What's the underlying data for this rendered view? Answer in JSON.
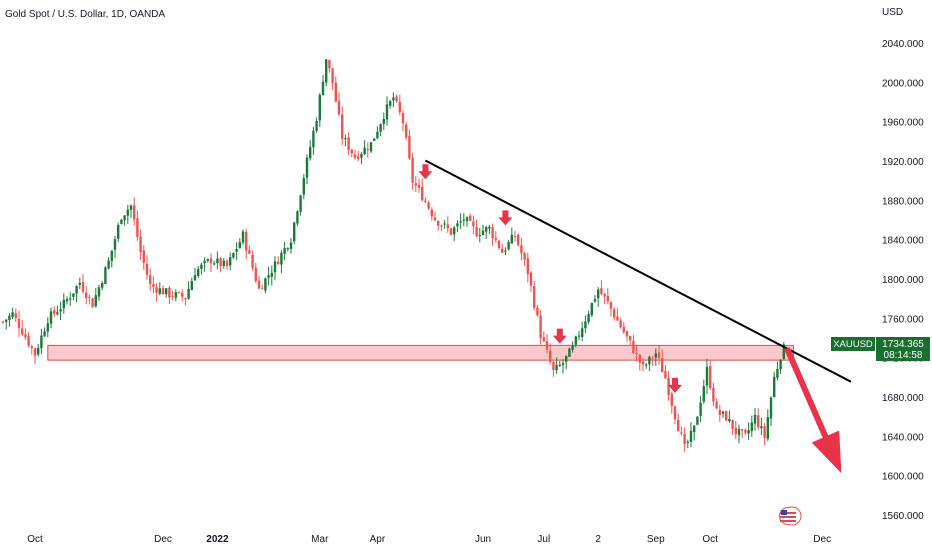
{
  "chart_data": {
    "type": "candlestick",
    "title": "Gold Spot / U.S. Dollar, 1D, OANDA",
    "currency": "USD",
    "y_range": [
      1545,
      2100
    ],
    "y_ticks": [
      {
        "value": 2040,
        "label": "2040.000"
      },
      {
        "value": 2000,
        "label": "2000.000"
      },
      {
        "value": 1960,
        "label": "1960.000"
      },
      {
        "value": 1920,
        "label": "1920.000"
      },
      {
        "value": 1880,
        "label": "1880.000"
      },
      {
        "value": 1840,
        "label": "1840.000"
      },
      {
        "value": 1800,
        "label": "1800.000"
      },
      {
        "value": 1760,
        "label": "1760.000"
      },
      {
        "value": 1720,
        "label": "1720.000"
      },
      {
        "value": 1680,
        "label": "1680.000"
      },
      {
        "value": 1640,
        "label": "1640.000"
      },
      {
        "value": 1600,
        "label": "1600.000"
      },
      {
        "value": 1560,
        "label": "1560.000"
      }
    ],
    "x_ticks": [
      {
        "label": "Oct",
        "bar": 10,
        "bold": false
      },
      {
        "label": "Dec",
        "bar": 50,
        "bold": false
      },
      {
        "label": "2022",
        "bar": 67,
        "bold": true
      },
      {
        "label": "Mar",
        "bar": 99,
        "bold": false
      },
      {
        "label": "Apr",
        "bar": 117,
        "bold": false
      },
      {
        "label": "Jun",
        "bar": 150,
        "bold": false
      },
      {
        "label": "Jul",
        "bar": 169,
        "bold": false
      },
      {
        "label": "2",
        "bar": 186,
        "bold": false
      },
      {
        "label": "Sep",
        "bar": 204,
        "bold": false
      },
      {
        "label": "Oct",
        "bar": 221,
        "bold": false
      },
      {
        "label": "Dec",
        "bar": 256,
        "bold": false
      }
    ],
    "price_path": [
      [
        0,
        1757
      ],
      [
        3,
        1765
      ],
      [
        6,
        1748
      ],
      [
        10,
        1724
      ],
      [
        14,
        1760
      ],
      [
        19,
        1775
      ],
      [
        24,
        1797
      ],
      [
        28,
        1775
      ],
      [
        33,
        1818
      ],
      [
        37,
        1865
      ],
      [
        40,
        1875
      ],
      [
        43,
        1828
      ],
      [
        46,
        1794
      ],
      [
        52,
        1785
      ],
      [
        57,
        1782
      ],
      [
        60,
        1808
      ],
      [
        65,
        1820
      ],
      [
        70,
        1813
      ],
      [
        75,
        1845
      ],
      [
        80,
        1790
      ],
      [
        85,
        1815
      ],
      [
        90,
        1842
      ],
      [
        94,
        1905
      ],
      [
        98,
        1965
      ],
      [
        101,
        2025
      ],
      [
        103,
        2000
      ],
      [
        106,
        1945
      ],
      [
        110,
        1925
      ],
      [
        115,
        1938
      ],
      [
        119,
        1968
      ],
      [
        122,
        1985
      ],
      [
        125,
        1960
      ],
      [
        128,
        1900
      ],
      [
        131,
        1885
      ],
      [
        135,
        1862
      ],
      [
        140,
        1848
      ],
      [
        144,
        1862
      ],
      [
        148,
        1848
      ],
      [
        152,
        1852
      ],
      [
        156,
        1828
      ],
      [
        160,
        1845
      ],
      [
        164,
        1808
      ],
      [
        168,
        1744
      ],
      [
        172,
        1706
      ],
      [
        175,
        1715
      ],
      [
        178,
        1730
      ],
      [
        182,
        1760
      ],
      [
        186,
        1790
      ],
      [
        189,
        1776
      ],
      [
        192,
        1758
      ],
      [
        196,
        1735
      ],
      [
        200,
        1710
      ],
      [
        204,
        1725
      ],
      [
        207,
        1700
      ],
      [
        210,
        1662
      ],
      [
        213,
        1628
      ],
      [
        216,
        1648
      ],
      [
        220,
        1708
      ],
      [
        223,
        1665
      ],
      [
        226,
        1660
      ],
      [
        229,
        1645
      ],
      [
        232,
        1640
      ],
      [
        235,
        1660
      ],
      [
        238,
        1640
      ],
      [
        241,
        1700
      ],
      [
        244,
        1734
      ]
    ],
    "signal_arrows_at_bars": [
      132,
      157,
      174,
      210
    ],
    "trendline": {
      "from": {
        "bar": 132,
        "value": 1921
      },
      "to": {
        "bar": 265,
        "value": 1696
      }
    },
    "support_zone": {
      "from_bar": 14,
      "to_bar": 247,
      "low": 1718,
      "high": 1733
    },
    "projection_arrow": {
      "from": {
        "bar": 245,
        "value": 1730
      },
      "to": {
        "bar": 262,
        "value": 1603
      }
    },
    "last_price": {
      "symbol": "XAUUSD",
      "value": "1734.365",
      "countdown": "08:14:58"
    },
    "colors": {
      "up": "#26a69a",
      "up_dark": "#1b7a3a",
      "down": "#ef5350",
      "trendline": "#000000",
      "zone_fill": "#f9c9cc",
      "zone_border": "#e04a52",
      "arrow": "#e8334a",
      "price_tag": "#1a6e2f"
    },
    "grid": false
  }
}
